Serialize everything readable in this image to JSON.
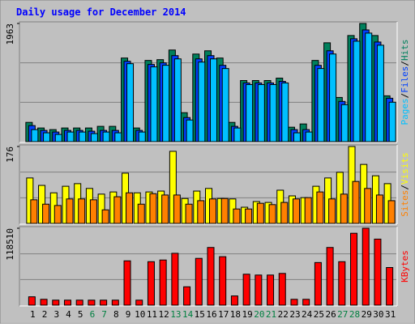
{
  "chart_data": [
    {
      "type": "bar",
      "title": "Daily usage for December 2014",
      "legend_separator": "/",
      "ylim": [
        0,
        1963
      ],
      "yticks": [
        1963
      ],
      "series": [
        {
          "name": "Hits",
          "color": "#00805c",
          "values": [
            320,
            227,
            200,
            227,
            227,
            227,
            254,
            254,
            1389,
            227,
            1349,
            1362,
            1522,
            481,
            1455,
            1509,
            1389,
            320,
            1015,
            1015,
            1015,
            1055,
            240,
            294,
            1349,
            1642,
            734,
            1763,
            1963,
            1763,
            761
          ]
        },
        {
          "name": "Files",
          "color": "#0040ff",
          "values": [
            267,
            187,
            160,
            187,
            187,
            174,
            187,
            187,
            1335,
            187,
            1282,
            1309,
            1429,
            400,
            1375,
            1429,
            1268,
            254,
            975,
            975,
            975,
            1001,
            200,
            200,
            1268,
            1509,
            668,
            1709,
            1856,
            1655,
            721
          ]
        },
        {
          "name": "Pages",
          "color": "#00c0ff",
          "values": [
            200,
            147,
            120,
            160,
            160,
            134,
            160,
            147,
            1295,
            160,
            1242,
            1269,
            1375,
            360,
            1322,
            1375,
            1215,
            227,
            948,
            948,
            948,
            975,
            147,
            160,
            1215,
            1456,
            615,
            1669,
            1803,
            1602,
            655
          ]
        }
      ]
    },
    {
      "type": "bar",
      "legend_separator": "/",
      "ylim": [
        0,
        176
      ],
      "yticks": [
        176
      ],
      "series": [
        {
          "name": "Visits",
          "color": "#ffff00",
          "values": [
            104,
            87,
            70,
            85,
            91,
            80,
            67,
            72,
            115,
            70,
            72,
            74,
            165,
            57,
            74,
            80,
            57,
            56,
            37,
            50,
            48,
            76,
            63,
            59,
            85,
            104,
            117,
            176,
            135,
            109,
            91
          ]
        },
        {
          "name": "Sites",
          "color": "#ff8000",
          "values": [
            54,
            44,
            41,
            56,
            56,
            54,
            31,
            61,
            70,
            44,
            68,
            65,
            65,
            44,
            52,
            56,
            57,
            33,
            33,
            46,
            43,
            48,
            56,
            59,
            72,
            56,
            67,
            96,
            80,
            65,
            52
          ]
        }
      ]
    },
    {
      "type": "bar",
      "ylim": [
        0,
        118510
      ],
      "yticks": [
        118510
      ],
      "categories": [
        "1",
        "2",
        "3",
        "4",
        "5",
        "6",
        "7",
        "8",
        "9",
        "10",
        "11",
        "12",
        "13",
        "14",
        "15",
        "16",
        "17",
        "18",
        "19",
        "20",
        "21",
        "22",
        "23",
        "24",
        "25",
        "26",
        "27",
        "28",
        "29",
        "30",
        "31"
      ],
      "category_colors": [
        "#000000",
        "#000000",
        "#000000",
        "#000000",
        "#000000",
        "#008040",
        "#008040",
        "#000000",
        "#000000",
        "#000000",
        "#000000",
        "#000000",
        "#008040",
        "#008040",
        "#000000",
        "#000000",
        "#000000",
        "#000000",
        "#000000",
        "#008040",
        "#008040",
        "#000000",
        "#000000",
        "#000000",
        "#000000",
        "#000000",
        "#008040",
        "#008040",
        "#000000",
        "#000000",
        "#000000"
      ],
      "series": [
        {
          "name": "KBytes",
          "color": "#ff0000",
          "values": [
            12880,
            9016,
            7728,
            7728,
            7728,
            7728,
            7728,
            7728,
            68300,
            7728,
            67000,
            69600,
            79900,
            28300,
            72100,
            88900,
            74700,
            14200,
            47700,
            46400,
            46400,
            48900,
            9000,
            9000,
            65700,
            88900,
            67000,
            110800,
            118510,
            101800,
            58000
          ]
        }
      ]
    }
  ]
}
